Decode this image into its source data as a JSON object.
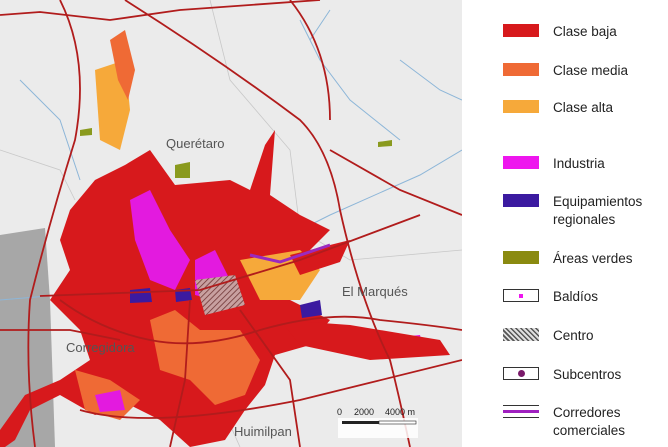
{
  "map": {
    "labels": [
      "Querétaro",
      "El Marqués",
      "Corregidora",
      "Huimilpan"
    ],
    "scale": [
      "0",
      "2000",
      "4000 m"
    ]
  },
  "legend": [
    "Clase baja",
    "Clase media",
    "Clase alta",
    "Industria",
    "Equipamientos regionales",
    "Áreas verdes",
    "Baldíos",
    "Centro",
    "Subcentros",
    "Corredores comerciales"
  ]
}
